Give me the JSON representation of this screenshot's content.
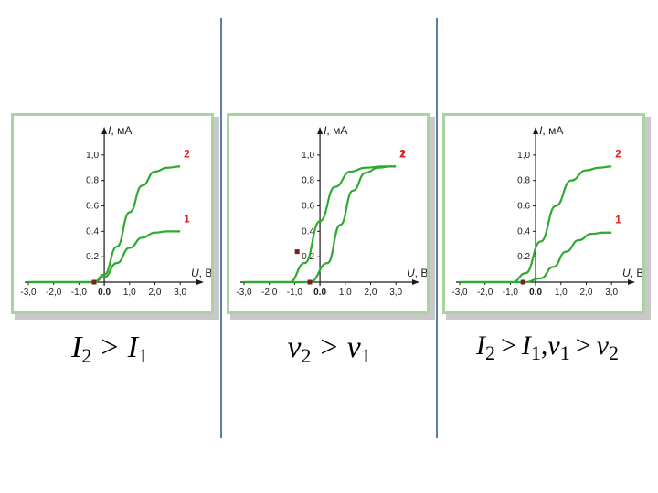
{
  "colors": {
    "curve": "#2eaa2e",
    "curve_label": "#e02020",
    "axis": "#1a1a1a",
    "frame": "#a9d3a0",
    "divider": "#5b7fa6"
  },
  "chart_data": [
    {
      "type": "line",
      "xlabel_var": "U",
      "xlabel_unit": ", B",
      "ylabel_var": "I",
      "ylabel_unit": ", мА",
      "xlim": [
        -3.0,
        3.5
      ],
      "ylim": [
        0,
        1.15
      ],
      "xticks": [
        -3.0,
        -2.0,
        -1.0,
        0.0,
        1.0,
        2.0,
        3.0
      ],
      "xtick_labels": [
        "-3,0",
        "-2,0",
        "-1,0",
        "0.0",
        "1,0",
        "2,0",
        "3,0"
      ],
      "yticks": [
        0.2,
        0.4,
        0.6,
        0.8,
        1.0
      ],
      "ytick_labels": [
        "0.2",
        "0.4",
        "0.6",
        "0.8",
        "1,0"
      ],
      "series": [
        {
          "name": "2",
          "x": [
            -3.0,
            -0.4,
            0.0,
            0.5,
            1.0,
            1.5,
            2.0,
            2.5,
            3.0
          ],
          "y": [
            0,
            0,
            0.06,
            0.28,
            0.55,
            0.76,
            0.87,
            0.9,
            0.91
          ]
        },
        {
          "name": "1",
          "x": [
            -3.0,
            -0.4,
            0.0,
            0.5,
            1.0,
            1.5,
            2.0,
            2.5,
            3.0
          ],
          "y": [
            0,
            0,
            0.04,
            0.15,
            0.27,
            0.35,
            0.39,
            0.4,
            0.4
          ]
        }
      ],
      "markers": [
        {
          "x": -0.4,
          "y": 0
        }
      ]
    },
    {
      "type": "line",
      "xlabel_var": "U",
      "xlabel_unit": ", B",
      "ylabel_var": "I",
      "ylabel_unit": ", мА",
      "xlim": [
        -3.0,
        3.5
      ],
      "ylim": [
        0,
        1.15
      ],
      "xticks": [
        -3.0,
        -2.0,
        -1.0,
        0.0,
        1.0,
        2.0,
        3.0
      ],
      "xtick_labels": [
        "-3,0",
        "-2,0",
        "-1,0",
        "0.0",
        "1,0",
        "2,0",
        "3,0"
      ],
      "yticks": [
        0.2,
        0.4,
        0.6,
        0.8,
        1.0
      ],
      "ytick_labels": [
        "0.2",
        "0.4",
        "0.6",
        "0.8",
        "1,0"
      ],
      "series": [
        {
          "name": "2",
          "x": [
            -3.0,
            -1.2,
            -0.6,
            0.0,
            0.6,
            1.2,
            1.8,
            2.5,
            3.0
          ],
          "y": [
            0,
            0,
            0.15,
            0.48,
            0.75,
            0.87,
            0.9,
            0.91,
            0.91
          ]
        },
        {
          "name": "1",
          "x": [
            -3.0,
            -0.4,
            0.3,
            0.8,
            1.3,
            1.8,
            2.3,
            2.8,
            3.0
          ],
          "y": [
            0,
            0,
            0.15,
            0.45,
            0.72,
            0.86,
            0.9,
            0.91,
            0.91
          ]
        }
      ],
      "markers": [
        {
          "x": -0.9,
          "y": 0.24
        },
        {
          "x": -0.4,
          "y": 0
        }
      ]
    },
    {
      "type": "line",
      "xlabel_var": "U",
      "xlabel_unit": ", B",
      "ylabel_var": "I",
      "ylabel_unit": ", мА",
      "xlim": [
        -3.0,
        3.5
      ],
      "ylim": [
        0,
        1.15
      ],
      "xticks": [
        -3.0,
        -2.0,
        -1.0,
        0.0,
        1.0,
        2.0,
        3.0
      ],
      "xtick_labels": [
        "-3,0",
        "-2,0",
        "-1,0",
        "0.0",
        "1,0",
        "2,0",
        "3,0"
      ],
      "yticks": [
        0.2,
        0.4,
        0.6,
        0.8,
        1.0
      ],
      "ytick_labels": [
        "0.2",
        "0.4",
        "0.6",
        "0.8",
        "1,0"
      ],
      "series": [
        {
          "name": "2",
          "x": [
            -3.0,
            -0.9,
            -0.4,
            0.2,
            0.8,
            1.4,
            2.0,
            2.5,
            3.0
          ],
          "y": [
            0,
            0,
            0.07,
            0.32,
            0.6,
            0.8,
            0.88,
            0.9,
            0.91
          ]
        },
        {
          "name": "1",
          "x": [
            -3.0,
            -0.4,
            0.2,
            0.7,
            1.2,
            1.7,
            2.2,
            2.7,
            3.0
          ],
          "y": [
            0,
            0,
            0.03,
            0.12,
            0.24,
            0.33,
            0.38,
            0.39,
            0.39
          ]
        }
      ],
      "markers": [
        {
          "x": -0.5,
          "y": 0
        }
      ]
    }
  ],
  "captions": [
    {
      "a": "I",
      "a_sub": "2",
      "op1": ">",
      "b": "I",
      "b_sub": "1"
    },
    {
      "a": "ν",
      "a_sub": "2",
      "op1": ">",
      "b": "ν",
      "b_sub": "1"
    },
    {
      "a": "I",
      "a_sub": "2",
      "op1": ">",
      "b": "I",
      "b_sub": "1",
      "sep": ",",
      "c": "ν",
      "c_sub": "1",
      "op2": ">",
      "d": "ν",
      "d_sub": "2"
    }
  ]
}
